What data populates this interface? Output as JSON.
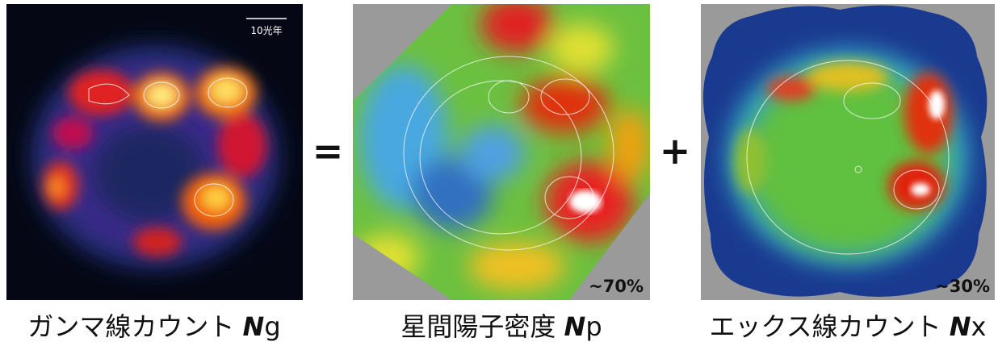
{
  "panels": [
    {
      "scale_bar": "10光年",
      "caption": {
        "text": "ガンマ線カウント",
        "symbol": "N",
        "sub": "g"
      }
    },
    {
      "percent": "~70%",
      "caption": {
        "text": "星間陽子密度",
        "symbol": "N",
        "sub": "p"
      }
    },
    {
      "percent": "~30%",
      "caption": {
        "text": "エックス線カウント",
        "symbol": "N",
        "sub": "x"
      }
    }
  ],
  "operators": [
    "=",
    "+"
  ]
}
